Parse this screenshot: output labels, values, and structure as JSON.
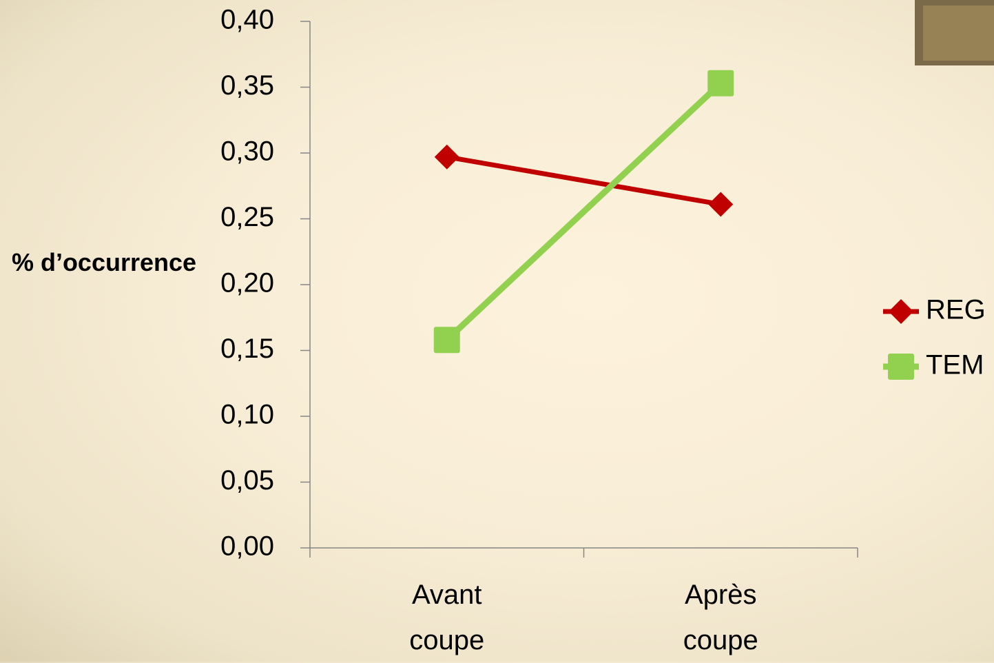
{
  "chart_data": {
    "type": "line",
    "y_label": "% d’occurrence",
    "categories": [
      "Avant coupe",
      "Après coupe"
    ],
    "series": [
      {
        "name": "REG",
        "color": "#c00000",
        "marker": "diamond",
        "values": [
          0.297,
          0.261
        ]
      },
      {
        "name": "TEM",
        "color": "#92d050",
        "marker": "square",
        "values": [
          0.158,
          0.353
        ]
      }
    ],
    "ylim": [
      0,
      0.4
    ],
    "yticks": [
      {
        "value": 0,
        "label": "0,00"
      },
      {
        "value": 0.05,
        "label": "0,05"
      },
      {
        "value": 0.1,
        "label": "0,10"
      },
      {
        "value": 0.15,
        "label": "0,15"
      },
      {
        "value": 0.2,
        "label": "0,20"
      },
      {
        "value": 0.25,
        "label": "0,25"
      },
      {
        "value": 0.3,
        "label": "0,30"
      },
      {
        "value": 0.35,
        "label": "0,35"
      },
      {
        "value": 0.4,
        "label": "0,40"
      }
    ],
    "legend": "right"
  }
}
